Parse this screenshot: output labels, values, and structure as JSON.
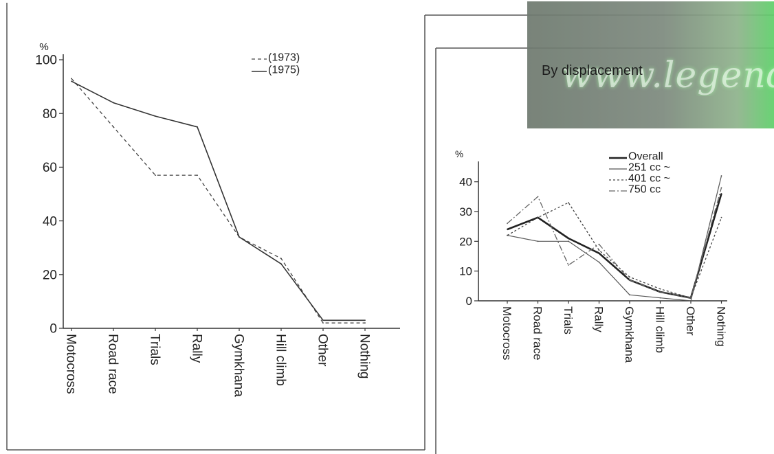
{
  "chart_data": [
    {
      "type": "line",
      "title": "",
      "ylabel": "%",
      "ylim": [
        0,
        100
      ],
      "yticks": [
        "0",
        "20",
        "40",
        "60",
        "80",
        "100"
      ],
      "categories": [
        "Motocross",
        "Road race",
        "Trials",
        "Rally",
        "Gymkhana",
        "Hill climb",
        "Other",
        "Nothing"
      ],
      "legend_position": "top-right",
      "series": [
        {
          "name": "(1973)",
          "style": "dashed",
          "values": [
            93,
            75,
            57,
            57,
            34,
            26,
            2,
            2
          ]
        },
        {
          "name": "(1975)",
          "style": "solid",
          "values": [
            92,
            84,
            79,
            75,
            34,
            24,
            3,
            3
          ]
        }
      ]
    },
    {
      "type": "line",
      "title": "By displacement",
      "ylabel": "%",
      "ylim": [
        0,
        45
      ],
      "yticks": [
        "0",
        "10",
        "20",
        "30",
        "40"
      ],
      "categories": [
        "Motocross",
        "Road race",
        "Trials",
        "Rally",
        "Gymkhana",
        "Hill climb",
        "Other",
        "Nothing"
      ],
      "legend_position": "top",
      "series": [
        {
          "name": "Overall",
          "style": "thick",
          "values": [
            24,
            28,
            21,
            16,
            7,
            3,
            1,
            36
          ]
        },
        {
          "name": "251 cc ~",
          "style": "thin",
          "values": [
            22,
            20,
            20,
            13,
            2,
            1,
            0,
            42
          ]
        },
        {
          "name": "401 cc ~",
          "style": "dotted",
          "values": [
            22,
            28,
            33,
            17,
            8,
            4,
            1,
            28
          ]
        },
        {
          "name": "750 cc",
          "style": "dashdot",
          "values": [
            26,
            35,
            12,
            19,
            7,
            3,
            1,
            38
          ]
        }
      ]
    }
  ],
  "watermark": {
    "text": "www.legends"
  }
}
